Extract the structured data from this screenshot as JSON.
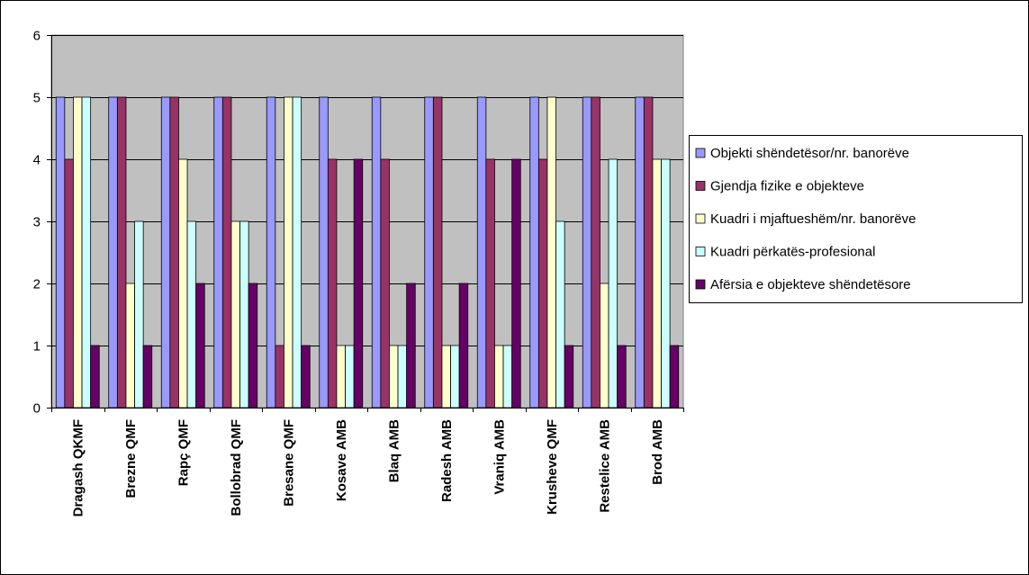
{
  "chart_data": {
    "type": "bar",
    "categories": [
      "Dragash QKMF",
      "Brezne QMF",
      "Rapç QMF",
      "Bollobrad QMF",
      "Bresane QMF",
      "Kosave AMB",
      "Blaq AMB",
      "Radesh AMB",
      "Vraniq AMB",
      "Krusheve QMF",
      "Restelice AMB",
      "Brod AMB"
    ],
    "series": [
      {
        "name": "Objekti shëndetësor/nr. banorëve",
        "color": "#9999ff",
        "values": [
          5,
          5,
          5,
          5,
          5,
          5,
          5,
          5,
          5,
          5,
          5,
          5
        ]
      },
      {
        "name": "Gjendja fizike e objekteve",
        "color": "#993366",
        "values": [
          4,
          5,
          5,
          5,
          1,
          4,
          4,
          5,
          4,
          4,
          5,
          5
        ]
      },
      {
        "name": "Kuadri i mjaftueshëm/nr. banorëve",
        "color": "#ffffcc",
        "values": [
          5,
          2,
          4,
          3,
          5,
          1,
          1,
          1,
          1,
          5,
          2,
          4
        ]
      },
      {
        "name": "Kuadri përkatës-profesional",
        "color": "#ccffff",
        "values": [
          5,
          3,
          3,
          3,
          5,
          1,
          1,
          1,
          1,
          3,
          4,
          4
        ]
      },
      {
        "name": "Afërsia e objekteve shëndetësore",
        "color": "#660066",
        "values": [
          1,
          1,
          2,
          2,
          1,
          4,
          2,
          2,
          4,
          1,
          1,
          1
        ]
      }
    ],
    "ylim": [
      0,
      6
    ],
    "yticks": [
      0,
      1,
      2,
      3,
      4,
      5,
      6
    ],
    "grid": true,
    "plot_background": "#c0c0c0",
    "legend_position": "right"
  }
}
